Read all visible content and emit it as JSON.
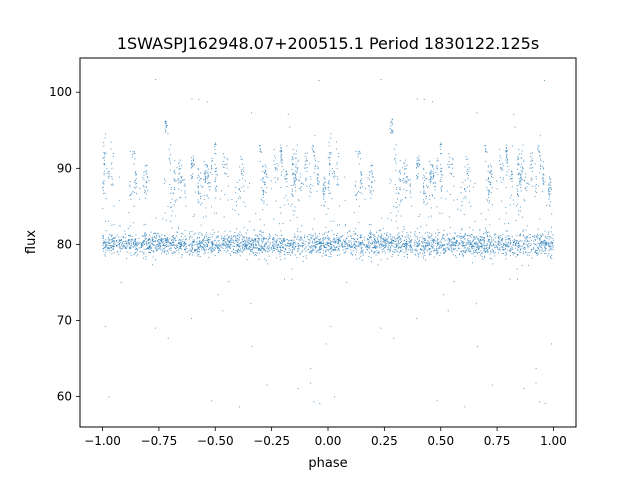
{
  "chart_data": {
    "type": "scatter",
    "title": "1SWASPJ162948.07+200515.1 Period 1830122.125s",
    "xlabel": "phase",
    "ylabel": "flux",
    "xlim": [
      -1.1,
      1.1
    ],
    "ylim": [
      56,
      104.5
    ],
    "x_ticks": [
      -1.0,
      -0.75,
      -0.5,
      -0.25,
      0.0,
      0.25,
      0.5,
      0.75,
      1.0
    ],
    "x_tick_labels": [
      "−1.00",
      "−0.75",
      "−0.50",
      "−0.25",
      "0.00",
      "0.25",
      "0.50",
      "0.75",
      "1.00"
    ],
    "y_ticks": [
      60,
      70,
      80,
      90,
      100
    ],
    "y_tick_labels": [
      "60",
      "70",
      "80",
      "90",
      "100"
    ],
    "grid": false,
    "marker_color": "#1f77b4",
    "series": [
      {
        "description_points": "folded light curve, phase range -1 to 1 (one period repeated twice); dense baseline band near flux 80 (about 77-83), upper band of short vertical streaks near flux 87-92, sparse outliers from ~58 to ~102, small cluster near flux 95-96.5 at phase -0.72 and 0.28",
        "baseline_center": 80.0,
        "baseline_spread": 1.2,
        "upper_band_center": 89.5,
        "upper_band_spread": 2.2,
        "peak_cluster_phases": [
          -0.72,
          0.28
        ],
        "peak_cluster_flux": [
          94.5,
          96.5
        ],
        "outlier_flux_range": [
          58,
          102
        ]
      }
    ]
  }
}
